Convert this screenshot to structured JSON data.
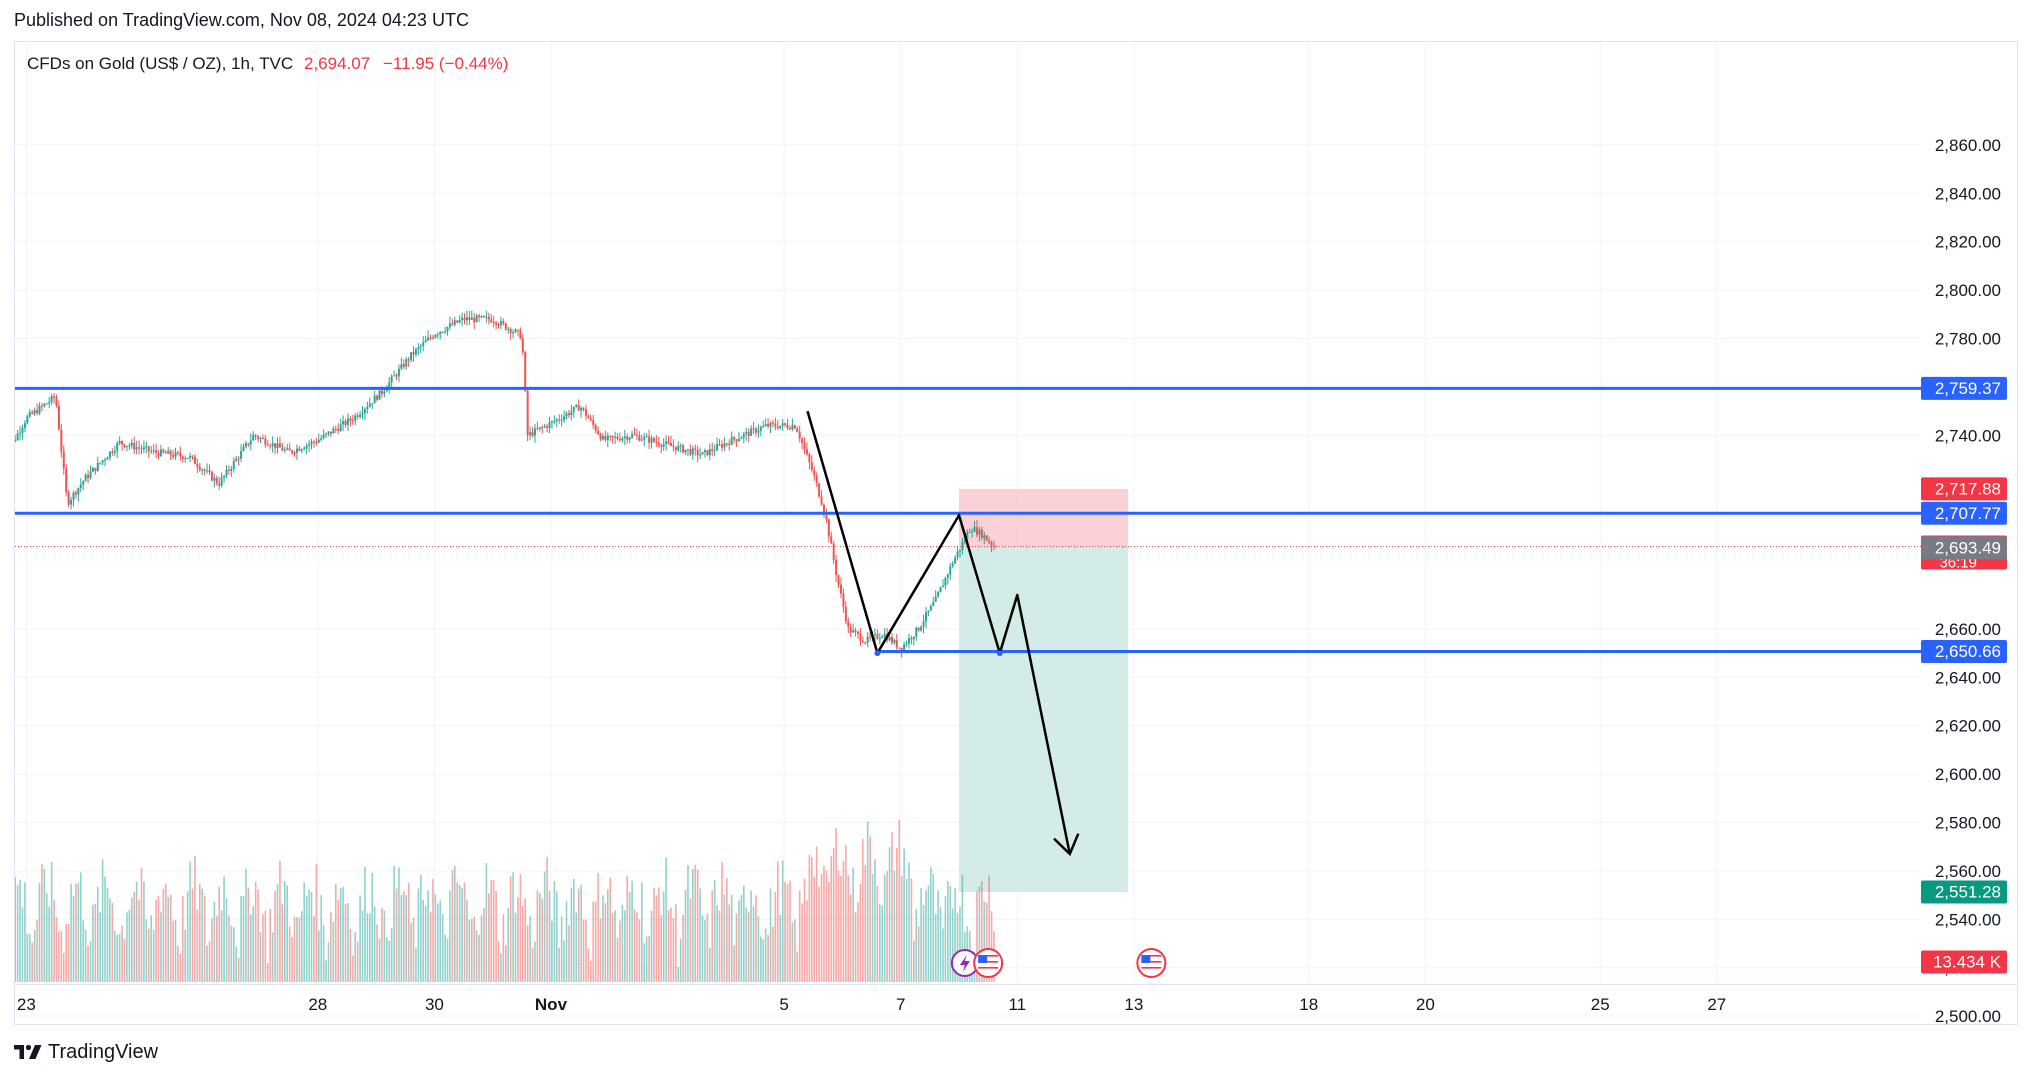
{
  "header": {
    "published": "Published on TradingView.com, Nov 08, 2024 04:23 UTC"
  },
  "legend": {
    "symbol": "CFDs on Gold (US$ / OZ), 1h, TVC",
    "last": "2,694.07",
    "change": "−11.95 (−0.44%)"
  },
  "footer": {
    "logo_icon": "tradingview-logo-icon",
    "brand": "TradingView"
  },
  "colors": {
    "up": "#26a69a",
    "down": "#ef5350",
    "level_line": "#2962ff",
    "badge_blue": "#2962ff",
    "badge_red": "#f23645",
    "badge_gray": "#787b86",
    "badge_green": "#089981",
    "stop_zone": "#f7c5cc",
    "target_zone": "#cfeae4",
    "drawing": "#000000"
  },
  "chart_data": {
    "type": "candlestick",
    "symbol": "CFDs on Gold (US$ / OZ)",
    "interval": "1h",
    "source": "TVC",
    "ylim": [
      2496,
      2865
    ],
    "y_ticks": [
      "2,860.00",
      "2,840.00",
      "2,820.00",
      "2,800.00",
      "2,780.00",
      "2,740.00",
      "2,660.00",
      "2,640.00",
      "2,620.00",
      "2,600.00",
      "2,580.00",
      "2,560.00",
      "2,540.00",
      "2,520.00",
      "2,500.00"
    ],
    "x_ticks": [
      {
        "label": "23",
        "day": 23
      },
      {
        "label": "28",
        "day": 28
      },
      {
        "label": "30",
        "day": 30
      },
      {
        "label": "Nov",
        "day": 32
      },
      {
        "label": "5",
        "day": 36
      },
      {
        "label": "7",
        "day": 38
      },
      {
        "label": "11",
        "day": 40
      },
      {
        "label": "13",
        "day": 42
      },
      {
        "label": "18",
        "day": 45
      },
      {
        "label": "20",
        "day": 47
      },
      {
        "label": "25",
        "day": 50
      },
      {
        "label": "27",
        "day": 52
      }
    ],
    "x_unit_note": "day index counted from Oct 1 (Nov 1 = 32)",
    "series": [
      {
        "name": "price",
        "points": [
          {
            "day": 22.6,
            "price": 2730
          },
          {
            "day": 23.0,
            "price": 2747
          },
          {
            "day": 23.5,
            "price": 2756
          },
          {
            "day": 23.7,
            "price": 2712
          },
          {
            "day": 24.0,
            "price": 2722
          },
          {
            "day": 24.6,
            "price": 2737
          },
          {
            "day": 25.2,
            "price": 2733
          },
          {
            "day": 25.8,
            "price": 2731
          },
          {
            "day": 26.3,
            "price": 2720
          },
          {
            "day": 26.9,
            "price": 2740
          },
          {
            "day": 27.5,
            "price": 2733
          },
          {
            "day": 28.0,
            "price": 2738
          },
          {
            "day": 28.6,
            "price": 2747
          },
          {
            "day": 29.1,
            "price": 2758
          },
          {
            "day": 29.6,
            "price": 2773
          },
          {
            "day": 30.0,
            "price": 2782
          },
          {
            "day": 30.5,
            "price": 2788
          },
          {
            "day": 31.0,
            "price": 2788
          },
          {
            "day": 31.5,
            "price": 2781
          },
          {
            "day": 31.6,
            "price": 2740
          },
          {
            "day": 32.0,
            "price": 2745
          },
          {
            "day": 32.5,
            "price": 2752
          },
          {
            "day": 32.9,
            "price": 2738
          },
          {
            "day": 33.4,
            "price": 2740
          },
          {
            "day": 34.0,
            "price": 2736
          },
          {
            "day": 34.6,
            "price": 2732
          },
          {
            "day": 35.1,
            "price": 2738
          },
          {
            "day": 35.7,
            "price": 2744
          },
          {
            "day": 36.2,
            "price": 2744
          },
          {
            "day": 36.5,
            "price": 2724
          },
          {
            "day": 36.7,
            "price": 2708
          },
          {
            "day": 36.9,
            "price": 2682
          },
          {
            "day": 37.1,
            "price": 2660
          },
          {
            "day": 37.4,
            "price": 2655
          },
          {
            "day": 37.7,
            "price": 2658
          },
          {
            "day": 38.0,
            "price": 2652
          },
          {
            "day": 38.3,
            "price": 2660
          },
          {
            "day": 38.6,
            "price": 2672
          },
          {
            "day": 38.9,
            "price": 2688
          },
          {
            "day": 39.2,
            "price": 2702
          },
          {
            "day": 39.4,
            "price": 2699
          },
          {
            "day": 39.6,
            "price": 2694
          }
        ]
      }
    ],
    "volume": {
      "last_label": "13.434 K"
    },
    "horizontal_levels": [
      {
        "label": "2,759.37",
        "value": 2759.37
      },
      {
        "label": "2,707.77",
        "value": 2707.77
      },
      {
        "label": "2,650.66",
        "value": 2650.66
      }
    ],
    "price_badges": [
      {
        "label": "2,717.88",
        "value": 2717.88,
        "kind": "stop"
      },
      {
        "label": "2,694.07",
        "sublabel": "36:19",
        "value": 2694.07,
        "kind": "last"
      },
      {
        "label": "2,693.49",
        "value": 2693.49,
        "kind": "entry"
      },
      {
        "label": "2,551.28",
        "value": 2551.28,
        "kind": "target"
      }
    ],
    "short_position": {
      "entry": 2693.49,
      "stop": 2717.88,
      "target": 2551.28,
      "from_day": 39.0,
      "to_day": 41.9
    },
    "drawing_path": [
      {
        "day": 36.4,
        "price": 2750
      },
      {
        "day": 37.6,
        "price": 2650
      },
      {
        "day": 39.0,
        "price": 2707
      },
      {
        "day": 39.7,
        "price": 2650
      },
      {
        "day": 40.0,
        "price": 2674
      },
      {
        "day": 40.9,
        "price": 2567
      }
    ],
    "event_markers": [
      {
        "day": 39.1,
        "icon": "lightning-icon"
      },
      {
        "day": 39.5,
        "icon": "us-flag-icon"
      },
      {
        "day": 42.3,
        "icon": "us-flag-icon"
      }
    ]
  }
}
